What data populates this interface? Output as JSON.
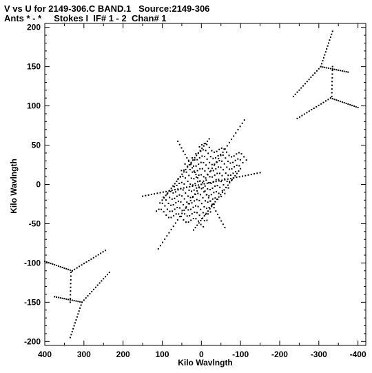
{
  "chart_data": {
    "type": "scatter",
    "title": "V vs U for 2149-306.C BAND.1   Source:2149-306",
    "subtitle": "Ants * - *     Stokes I  IF# 1 - 2  Chan# 1",
    "xlabel": "Kilo Wavlngth",
    "ylabel": "Kilo Wavlngth",
    "xlim": [
      400,
      -420
    ],
    "ylim": [
      -205,
      205
    ],
    "x_ticks": [
      400,
      300,
      200,
      100,
      0,
      -100,
      -200,
      -300,
      -400
    ],
    "x_tick_labels": [
      "400",
      "300",
      "200",
      "100",
      "0",
      "-100",
      "-200",
      "-300",
      "-400"
    ],
    "y_ticks": [
      200,
      150,
      100,
      50,
      0,
      -50,
      -100,
      -150,
      -200
    ],
    "y_tick_labels": [
      "200",
      "150",
      "100",
      "50",
      "0",
      "-50",
      "-100",
      "-150",
      "-200"
    ],
    "grid": false,
    "marker": "dot",
    "color": "#000000",
    "tracks": [
      {
        "from": [
          -335,
          195
        ],
        "to": [
          -305,
          150
        ],
        "n": 12
      },
      {
        "from": [
          -305,
          150
        ],
        "to": [
          -375,
          143
        ],
        "n": 14
      },
      {
        "from": [
          -305,
          150
        ],
        "to": [
          -235,
          112
        ],
        "n": 14
      },
      {
        "from": [
          -335,
          150
        ],
        "to": [
          -333,
          112
        ],
        "n": 8
      },
      {
        "from": [
          -330,
          110
        ],
        "to": [
          -400,
          98
        ],
        "n": 14
      },
      {
        "from": [
          -330,
          110
        ],
        "to": [
          -245,
          84
        ],
        "n": 14
      },
      {
        "from": [
          335,
          -195
        ],
        "to": [
          305,
          -150
        ],
        "n": 12
      },
      {
        "from": [
          305,
          -150
        ],
        "to": [
          375,
          -143
        ],
        "n": 14
      },
      {
        "from": [
          305,
          -150
        ],
        "to": [
          235,
          -112
        ],
        "n": 14
      },
      {
        "from": [
          335,
          -150
        ],
        "to": [
          333,
          -112
        ],
        "n": 8
      },
      {
        "from": [
          330,
          -110
        ],
        "to": [
          400,
          -98
        ],
        "n": 14
      },
      {
        "from": [
          330,
          -110
        ],
        "to": [
          245,
          -84
        ],
        "n": 14
      },
      {
        "from": [
          110,
          -82
        ],
        "to": [
          -110,
          82
        ],
        "n": 40
      },
      {
        "from": [
          150,
          -15
        ],
        "to": [
          -150,
          15
        ],
        "n": 40
      },
      {
        "from": [
          100,
          -20
        ],
        "to": [
          -20,
          58
        ],
        "n": 26
      },
      {
        "from": [
          20,
          -58
        ],
        "to": [
          -100,
          20
        ],
        "n": 26
      },
      {
        "from": [
          60,
          55
        ],
        "to": [
          -60,
          -55
        ],
        "n": 26
      }
    ],
    "core": {
      "center": [
        0,
        0
      ],
      "axis_a": [
        -55,
        42
      ],
      "axis_b": [
        -60,
        -8
      ],
      "rows": 13,
      "cols": 20
    }
  }
}
